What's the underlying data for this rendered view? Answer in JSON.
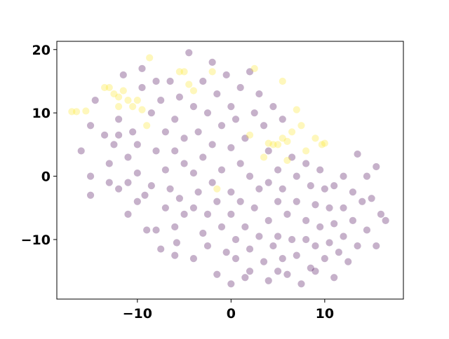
{
  "chart_data": {
    "type": "scatter",
    "xlim": [
      -18.6,
      18.4
    ],
    "ylim": [
      -19.4,
      21.3
    ],
    "xticks": [
      {
        "value": -10,
        "label": "−10"
      },
      0,
      10
    ],
    "yticks": [
      {
        "value": -10,
        "label": "−10"
      },
      0,
      10,
      20
    ],
    "opacity": 0.3,
    "series": [
      {
        "color": "#440154",
        "x": [
          -16,
          -15,
          -14.5,
          -15,
          -15,
          -13.5,
          -13,
          -12.5,
          -12,
          -12,
          -11.5,
          -11,
          -11,
          -11,
          -10.5,
          -10,
          -10,
          -9.5,
          -9.5,
          -9.2,
          -9,
          -8.5,
          -8.5,
          -8,
          -8,
          -7.5,
          -7.5,
          -7,
          -7,
          -7,
          -6.5,
          -6.5,
          -6,
          -6,
          -6,
          -5.8,
          -5.5,
          -5.5,
          -5,
          -5,
          -5,
          -4.5,
          -4,
          -4,
          -4,
          -4,
          -3.5,
          -3.5,
          -3,
          -3,
          -3,
          -2.5,
          -2.5,
          -2.5,
          -2,
          -2,
          -2,
          -1.5,
          -1.5,
          -1.5,
          -1,
          -1,
          -1,
          -0.5,
          -0.5,
          0,
          0,
          0,
          0,
          0.5,
          0.5,
          0.5,
          1,
          1,
          1,
          1.5,
          1.5,
          1.5,
          2,
          2,
          2,
          2.5,
          2.5,
          3,
          3,
          3,
          3.5,
          3.5,
          4,
          4,
          4,
          4,
          4.5,
          4.5,
          5,
          5,
          5,
          5,
          5.5,
          5.5,
          5.5,
          6,
          6,
          6.5,
          6.5,
          7,
          7,
          7,
          7.5,
          8,
          8,
          8,
          8.5,
          8.5,
          9,
          9,
          9.5,
          9.5,
          10,
          10,
          10.5,
          10.5,
          11,
          11,
          11,
          11.5,
          12,
          12,
          12,
          12.5,
          13,
          13,
          13.5,
          13.5,
          14,
          14.5,
          14.5,
          15,
          15.5,
          15.5,
          16,
          16.5,
          -10,
          -12,
          -8,
          -13,
          -6,
          0,
          2,
          9
        ],
        "values": [
          4,
          8,
          12,
          0,
          -3,
          6.5,
          2,
          5,
          9,
          6.5,
          16,
          -1,
          3,
          -6,
          7,
          0.5,
          5,
          17,
          14,
          -3,
          -8.5,
          10,
          -1.5,
          4,
          -8.5,
          12,
          -11.5,
          7,
          1,
          -5,
          15,
          -2,
          9,
          4,
          -8,
          -10.5,
          12.5,
          -3.5,
          6,
          2,
          -6,
          19.5,
          11,
          0.5,
          -5,
          -13,
          7,
          -2.5,
          15,
          3,
          -9,
          10,
          -6,
          -11,
          18,
          5,
          -1,
          13,
          -4,
          -15.5,
          8,
          1,
          -8,
          16,
          -12,
          11,
          4.5,
          -2.5,
          -6,
          9,
          -10,
          -13,
          14,
          2,
          -4,
          6,
          -8,
          -16,
          16.5,
          0,
          -11.5,
          10,
          -5,
          13,
          -2,
          -9.5,
          8,
          -13.5,
          4,
          -1,
          -7,
          -16.5,
          11,
          -11,
          1,
          -4,
          -9.5,
          -15,
          9,
          -2,
          -13,
          -6,
          -15.5,
          3,
          -10,
          0,
          -4,
          -12.5,
          -17,
          2,
          -7,
          -10,
          -1.5,
          -14.5,
          -4.5,
          -11,
          1,
          -8,
          -2,
          -13,
          -5,
          -10.5,
          -1.5,
          -7.5,
          -16,
          -12,
          0,
          -5,
          -9.5,
          -13.5,
          -2.5,
          -7,
          3.5,
          -11,
          -4,
          0,
          -8.5,
          -3.5,
          1.5,
          -11,
          -6,
          -7,
          -4,
          -2,
          15,
          -1,
          -12.5,
          -17,
          -15,
          -15
        ]
      },
      {
        "color": "#fde725",
        "x": [
          -17,
          -16.5,
          -15.5,
          -13.5,
          -13,
          -12.5,
          -12,
          -11,
          -10.5,
          -10,
          -9.5,
          -9,
          -8.7,
          -5,
          -4.5,
          -4,
          -2,
          2.5,
          5,
          5.5,
          6,
          6.5,
          7,
          7.5,
          8,
          9,
          9.7,
          10,
          4,
          4.5,
          6,
          3.5,
          2,
          -1.5,
          -5.5,
          -11.5,
          -12,
          5.5
        ],
        "values": [
          10.2,
          10.2,
          10.3,
          14,
          14,
          13,
          11,
          12,
          11,
          12,
          10.5,
          8,
          18.7,
          16.5,
          14.5,
          13.5,
          16.5,
          17,
          5,
          6,
          5.5,
          7,
          10.5,
          8,
          4,
          6,
          5,
          5.2,
          5.2,
          5,
          2.5,
          3,
          6.5,
          -2,
          16.5,
          13.5,
          12.5,
          15
        ]
      }
    ]
  }
}
